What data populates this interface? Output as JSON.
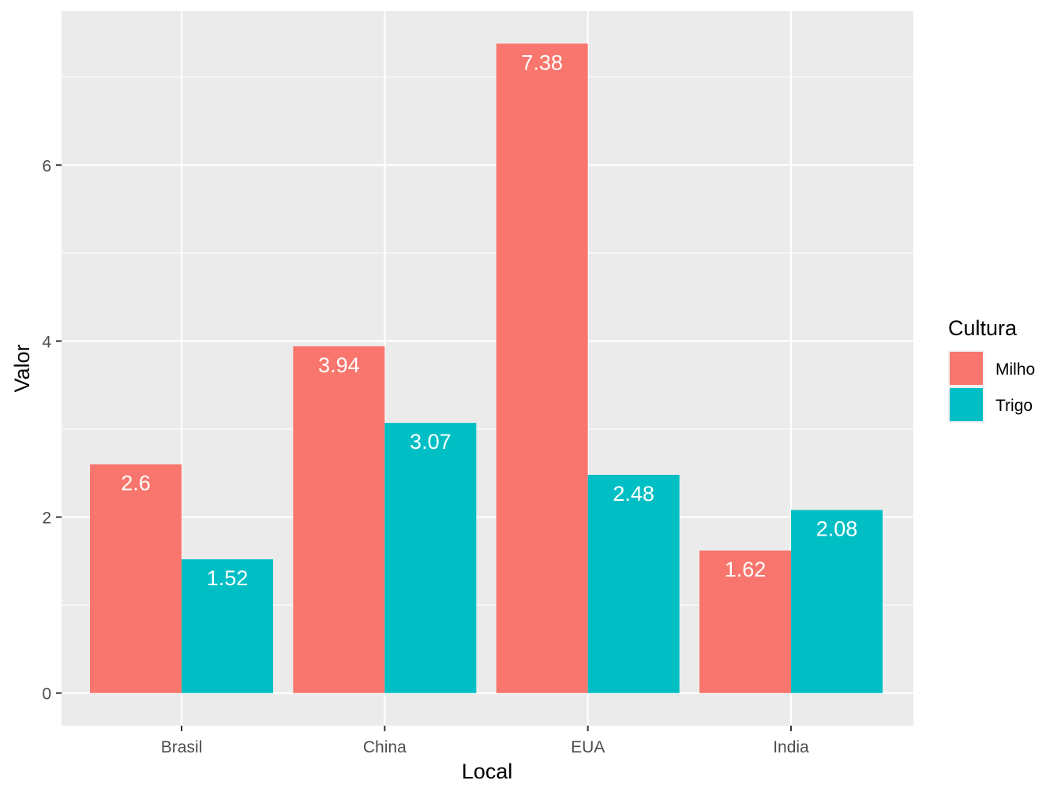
{
  "chart_data": {
    "type": "bar",
    "title": "",
    "xlabel": "Local",
    "ylabel": "Valor",
    "categories": [
      "Brasil",
      "China",
      "EUA",
      "India"
    ],
    "series": [
      {
        "name": "Milho",
        "values": [
          2.6,
          3.94,
          7.38,
          1.62
        ],
        "labels": [
          "2.6",
          "3.94",
          "7.38",
          "1.62"
        ],
        "color": "#F8766D"
      },
      {
        "name": "Trigo",
        "values": [
          1.52,
          3.07,
          2.48,
          2.08
        ],
        "labels": [
          "1.52",
          "3.07",
          "2.48",
          "2.08"
        ],
        "color": "#00BFC4"
      }
    ],
    "ylim": [
      -0.37,
      7.75
    ],
    "yticks": [
      0,
      2,
      4,
      6
    ],
    "ytick_labels": [
      "0",
      "2",
      "4",
      "6"
    ],
    "grid": true,
    "legend": {
      "title": "Cultura",
      "position": "right"
    },
    "colors": {
      "panel_background": "#EBEBEB",
      "grid": "#FFFFFF",
      "axis_text": "#4D4D4D",
      "label_text": "#FFFFFF"
    }
  }
}
